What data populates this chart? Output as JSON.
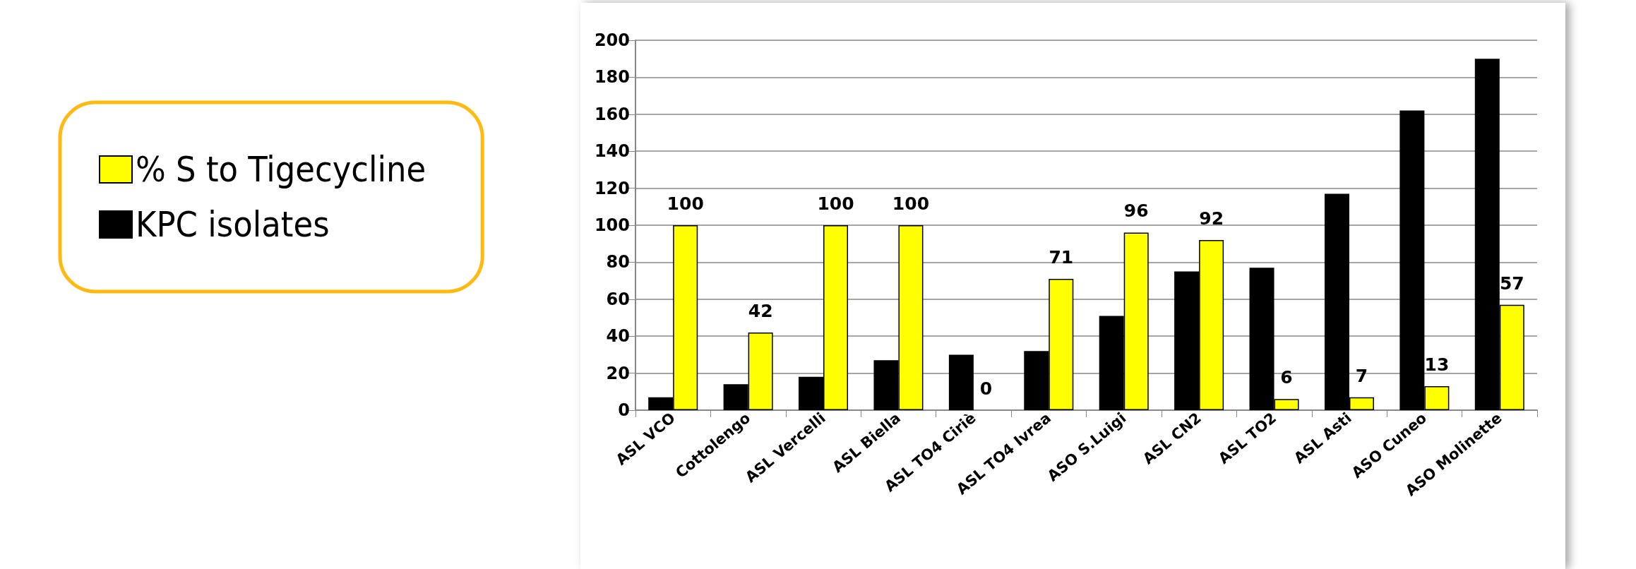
{
  "chart_data": {
    "type": "bar",
    "categories": [
      "ASL VCO",
      "Cottolengo",
      "ASL Vercelli",
      "ASL Biella",
      "ASL TO4 Ciriè",
      "ASL TO4 Ivrea",
      "ASO S.Luigi",
      "ASL CN2",
      "ASL TO2",
      "ASL Asti",
      "ASO Cuneo",
      "ASO Molinette"
    ],
    "series": [
      {
        "name": "KPC isolates",
        "color": "#000000",
        "values": [
          7,
          14,
          18,
          27,
          30,
          32,
          51,
          75,
          77,
          117,
          162,
          190
        ]
      },
      {
        "name": "% S to Tigecycline",
        "color": "#ffff00",
        "values": [
          100,
          42,
          100,
          100,
          0,
          71,
          96,
          92,
          6,
          7,
          13,
          57
        ],
        "value_labels": [
          "100",
          "42",
          "100",
          "100",
          "0",
          "71",
          "96",
          "92",
          "6",
          "7",
          "13",
          "57"
        ]
      }
    ],
    "ylim": [
      0,
      200
    ],
    "yticks": [
      0,
      20,
      40,
      60,
      80,
      100,
      120,
      140,
      160,
      180,
      200
    ],
    "grid": "y",
    "legend": "left"
  }
}
